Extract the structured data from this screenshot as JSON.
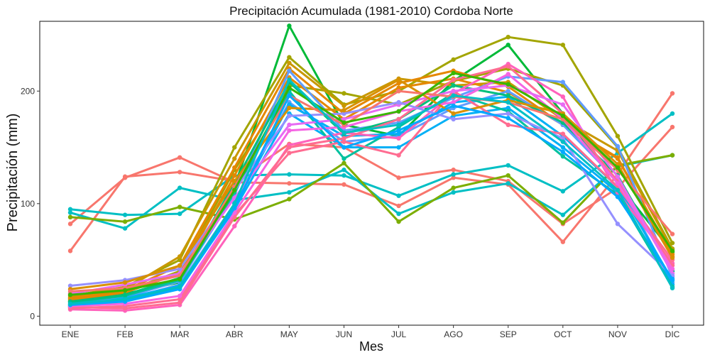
{
  "chart_data": {
    "type": "line",
    "title": "Precipitación Acumulada (1981-2010)  Cordoba Norte",
    "xlabel": "Mes",
    "ylabel": "Precipitación  (mm)",
    "categories": [
      "ENE",
      "FEB",
      "MAR",
      "ABR",
      "MAY",
      "JUN",
      "JUL",
      "AGO",
      "SEP",
      "OCT",
      "NOV",
      "DIC"
    ],
    "y_ticks": [
      0,
      100,
      200
    ],
    "ylim": [
      -8,
      262
    ],
    "grid": false,
    "legend": "none",
    "series": [
      {
        "color": "#F8766D",
        "values": [
          82,
          123,
          141,
          119,
          118,
          117,
          98,
          123,
          117,
          66,
          126,
          198
        ]
      },
      {
        "color": "#F8766D",
        "values": [
          58,
          124,
          128,
          120,
          153,
          150,
          123,
          130,
          120,
          82,
          114,
          168
        ]
      },
      {
        "color": "#00BFC4",
        "values": [
          95,
          90,
          91,
          125,
          126,
          125,
          107,
          126,
          134,
          111,
          145,
          180
        ]
      },
      {
        "color": "#00BFC4",
        "values": [
          92,
          78,
          114,
          103,
          110,
          130,
          91,
          110,
          118,
          90,
          133,
          143
        ]
      },
      {
        "color": "#7CAE00",
        "values": [
          88,
          84,
          97,
          86,
          104,
          136,
          84,
          114,
          125,
          83,
          134,
          143
        ]
      },
      {
        "color": "#00BA38",
        "values": [
          13,
          20,
          30,
          115,
          258,
          170,
          160,
          209,
          241,
          180,
          118,
          57
        ]
      },
      {
        "color": "#A3A500",
        "values": [
          18,
          26,
          50,
          150,
          230,
          188,
          200,
          228,
          248,
          241,
          160,
          65
        ]
      },
      {
        "color": "#A3A500",
        "values": [
          15,
          22,
          40,
          130,
          205,
          198,
          188,
          209,
          220,
          205,
          150,
          60
        ]
      },
      {
        "color": "#C99800",
        "values": [
          17,
          24,
          53,
          140,
          225,
          187,
          211,
          205,
          208,
          175,
          147,
          59
        ]
      },
      {
        "color": "#E58700",
        "values": [
          16,
          23,
          45,
          132,
          220,
          180,
          207,
          218,
          204,
          170,
          140,
          55
        ]
      },
      {
        "color": "#E58700",
        "values": [
          14,
          21,
          38,
          125,
          212,
          175,
          203,
          211,
          199,
          170,
          141,
          53
        ]
      },
      {
        "color": "#619CFF",
        "values": [
          11,
          17,
          31,
          108,
          218,
          165,
          172,
          194,
          213,
          208,
          151,
          35
        ]
      },
      {
        "color": "#619CFF",
        "values": [
          10,
          15,
          28,
          100,
          190,
          155,
          160,
          185,
          200,
          170,
          120,
          30
        ]
      },
      {
        "color": "#00B0F6",
        "values": [
          8,
          14,
          25,
          95,
          180,
          150,
          150,
          178,
          185,
          150,
          110,
          28
        ]
      },
      {
        "color": "#00B0F6",
        "values": [
          9,
          16,
          27,
          98,
          188,
          160,
          162,
          190,
          195,
          160,
          115,
          32
        ]
      },
      {
        "color": "#00C19F",
        "values": [
          12,
          18,
          32,
          110,
          200,
          140,
          168,
          198,
          182,
          142,
          108,
          26
        ]
      },
      {
        "color": "#00BF7D",
        "values": [
          13,
          19,
          34,
          118,
          208,
          162,
          175,
          205,
          196,
          172,
          125,
          40
        ]
      },
      {
        "color": "#FF62BC",
        "values": [
          6,
          5,
          10,
          80,
          152,
          163,
          158,
          198,
          224,
          195,
          110,
          47
        ]
      },
      {
        "color": "#FF6C91",
        "values": [
          7,
          9,
          15,
          90,
          145,
          155,
          143,
          200,
          170,
          162,
          115,
          50
        ]
      },
      {
        "color": "#FF6C91",
        "values": [
          8,
          7,
          12,
          88,
          150,
          158,
          175,
          210,
          222,
          180,
          120,
          45
        ]
      },
      {
        "color": "#F564E3",
        "values": [
          9,
          11,
          18,
          92,
          165,
          168,
          182,
          190,
          215,
          175,
          118,
          42
        ]
      },
      {
        "color": "#E76BF3",
        "values": [
          20,
          28,
          38,
          105,
          170,
          175,
          188,
          200,
          205,
          188,
          124,
          38
        ]
      },
      {
        "color": "#9590FF",
        "values": [
          27,
          32,
          42,
          112,
          178,
          180,
          190,
          175,
          180,
          158,
          82,
          36
        ]
      },
      {
        "color": "#D89000",
        "values": [
          24,
          30,
          45,
          120,
          185,
          183,
          210,
          180,
          192,
          180,
          135,
          52
        ]
      },
      {
        "color": "#F8766D",
        "values": [
          22,
          25,
          36,
          115,
          196,
          170,
          200,
          195,
          190,
          175,
          130,
          73
        ]
      },
      {
        "color": "#39B600",
        "values": [
          19,
          23,
          33,
          112,
          203,
          172,
          182,
          216,
          206,
          178,
          132,
          58
        ]
      },
      {
        "color": "#00A9FF",
        "values": [
          10,
          13,
          24,
          96,
          196,
          150,
          165,
          187,
          176,
          146,
          106,
          33
        ]
      },
      {
        "color": "#00BFC4",
        "values": [
          11,
          15,
          26,
          100,
          210,
          163,
          170,
          196,
          190,
          155,
          112,
          25
        ]
      }
    ]
  }
}
